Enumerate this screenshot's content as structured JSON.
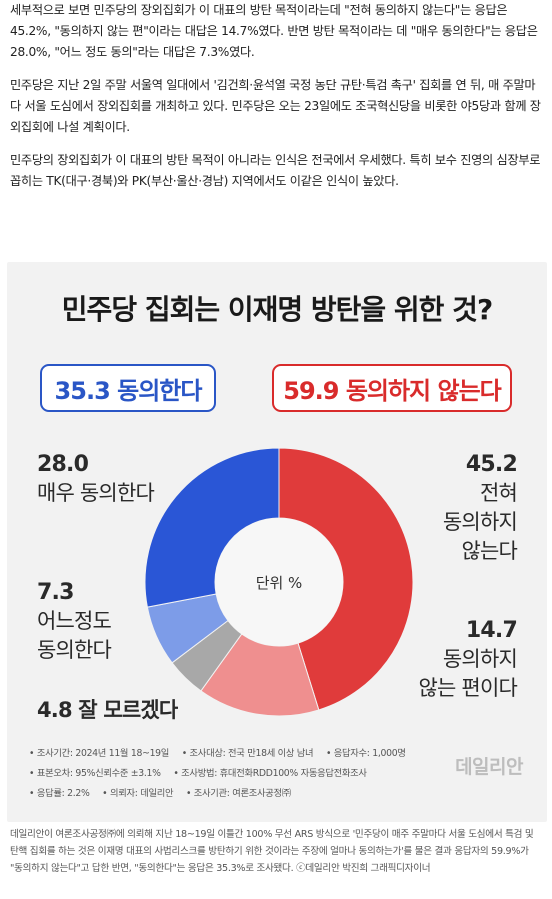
{
  "article": {
    "paragraphs": [
      "세부적으로 보면 민주당의 장외집회가 이 대표의 방탄 목적이라는데 \"전혀 동의하지 않는다\"는 응답은 45.2%, \"동의하지 않는 편\"이라는 대답은 14.7%였다. 반면 방탄 목적이라는 데 \"매우 동의한다\"는 응답은 28.0%, \"어느 정도 동의\"라는 대답은 7.3%였다.",
      "민주당은 지난 2일 주말 서울역 일대에서 '김건희·윤석열 국정 농단 규탄·특검 촉구' 집회를 연 뒤, 매 주말마다 서울 도심에서 장외집회를 개최하고 있다. 민주당은 오는 23일에도 조국혁신당을 비롯한 야5당과 함께 장외집회에 나설 계획이다.",
      "민주당의 장외집회가 이 대표의 방탄 목적이 아니라는 인식은 전국에서 우세했다. 특히 보수 진영의 심장부로 꼽히는 TK(대구·경북)와 PK(부산·울산·경남) 지역에서도 이같은 인식이 높았다."
    ]
  },
  "figure": {
    "title": "민주당 집회는 이재명 방탄을 위한 것?",
    "agree_badge": "35.3 동의한다",
    "disagree_badge": "59.9 동의하지 않는다",
    "unit_label": "단위 %",
    "labels": {
      "strongly_agree_value": "28.0",
      "strongly_agree_text": "매우 동의한다",
      "somewhat_agree_value": "7.3",
      "somewhat_agree_text_1": "어느정도",
      "somewhat_agree_text_2": "동의한다",
      "dont_know": "4.8 잘 모르겠다",
      "strongly_disagree_value": "45.2",
      "strongly_disagree_text_1": "전혀",
      "strongly_disagree_text_2": "동의하지",
      "strongly_disagree_text_3": "않는다",
      "somewhat_disagree_value": "14.7",
      "somewhat_disagree_text_1": "동의하지",
      "somewhat_disagree_text_2": "않는 편이다"
    },
    "notes": {
      "line1a": "• 조사기간: 2024년 11월 18~19일",
      "line1b": "• 조사대상: 전국 만18세 이상 남녀",
      "line1c": "• 응답자수: 1,000명",
      "line2a": "• 표본오차: 95%신뢰수준 ±3.1%",
      "line2b": "• 조사방법: 휴대전화RDD100% 자동응답전화조사",
      "line3a": "• 응답률: 2.2%",
      "line3b": "• 의뢰자: 데일리안",
      "line3c": "• 조사기관: 여론조사공정㈜"
    },
    "watermark": "데일리안",
    "colors": {
      "strongly_disagree": "#e03b3b",
      "somewhat_disagree": "#ef8f8f",
      "dont_know": "#a8a8a8",
      "somewhat_agree": "#7d9ce8",
      "strongly_agree": "#2a56d6"
    }
  },
  "caption": "데일리안이 여론조사공정㈜에 의뢰해 지난 18~19일 이틀간 100% 무선 ARS 방식으로 '민주당이 매주 주말마다 서울 도심에서 특검 및 탄핵 집회를 하는 것은 이재명 대표의 사법리스크를 방탄하기 위한 것이라는 주장에 얼마나 동의하는가'를 물은 결과 응답자의 59.9%가 \"동의하지 않는다\"고 답한 반면, \"동의한다\"는 응답은 35.3%로 조사됐다. ⓒ데일리안 박진희 그래픽디자이너",
  "chart_data": {
    "type": "pie",
    "title": "민주당 집회는 이재명 방탄을 위한 것?",
    "unit": "단위 %",
    "categories": [
      "전혀 동의하지 않는다",
      "동의하지 않는 편이다",
      "잘 모르겠다",
      "어느정도 동의한다",
      "매우 동의한다"
    ],
    "values": [
      45.2,
      14.7,
      4.8,
      7.3,
      28.0
    ],
    "colors": [
      "#e03b3b",
      "#ef8f8f",
      "#a8a8a8",
      "#7d9ce8",
      "#2a56d6"
    ],
    "totals": {
      "동의한다": 35.3,
      "동의하지 않는다": 59.9
    },
    "donut": true
  }
}
